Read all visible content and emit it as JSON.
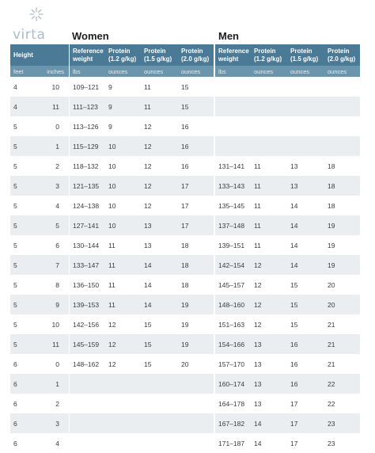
{
  "brand": {
    "name": "virta"
  },
  "sections": {
    "women": "Women",
    "men": "Men"
  },
  "header": {
    "height": "Height",
    "ref": "Reference weight",
    "p12": "Protein (1.2 g/kg)",
    "p15": "Protein (1.5 g/kg)",
    "p20": "Protein (2.0 g/kg)"
  },
  "units": {
    "feet": "feet",
    "inches": "inches",
    "lbs": "lbs",
    "ounces": "ounces"
  },
  "rows": [
    {
      "ft": "4",
      "in": "10",
      "w": [
        "109–121",
        "9",
        "11",
        "15"
      ],
      "m": [
        "",
        "",
        "",
        ""
      ]
    },
    {
      "ft": "4",
      "in": "11",
      "w": [
        "111–123",
        "9",
        "11",
        "15"
      ],
      "m": [
        "",
        "",
        "",
        ""
      ]
    },
    {
      "ft": "5",
      "in": "0",
      "w": [
        "113–126",
        "9",
        "12",
        "16"
      ],
      "m": [
        "",
        "",
        "",
        ""
      ]
    },
    {
      "ft": "5",
      "in": "1",
      "w": [
        "115–129",
        "10",
        "12",
        "16"
      ],
      "m": [
        "",
        "",
        "",
        ""
      ]
    },
    {
      "ft": "5",
      "in": "2",
      "w": [
        "118–132",
        "10",
        "12",
        "16"
      ],
      "m": [
        "131–141",
        "11",
        "13",
        "18"
      ]
    },
    {
      "ft": "5",
      "in": "3",
      "w": [
        "121–135",
        "10",
        "12",
        "17"
      ],
      "m": [
        "133–143",
        "11",
        "13",
        "18"
      ]
    },
    {
      "ft": "5",
      "in": "4",
      "w": [
        "124–138",
        "10",
        "12",
        "17"
      ],
      "m": [
        "135–145",
        "11",
        "14",
        "18"
      ]
    },
    {
      "ft": "5",
      "in": "5",
      "w": [
        "127–141",
        "10",
        "13",
        "17"
      ],
      "m": [
        "137–148",
        "11",
        "14",
        "19"
      ]
    },
    {
      "ft": "5",
      "in": "6",
      "w": [
        "130–144",
        "11",
        "13",
        "18"
      ],
      "m": [
        "139–151",
        "11",
        "14",
        "19"
      ]
    },
    {
      "ft": "5",
      "in": "7",
      "w": [
        "133–147",
        "11",
        "14",
        "18"
      ],
      "m": [
        "142–154",
        "12",
        "14",
        "19"
      ]
    },
    {
      "ft": "5",
      "in": "8",
      "w": [
        "136–150",
        "11",
        "14",
        "18"
      ],
      "m": [
        "145–157",
        "12",
        "15",
        "20"
      ]
    },
    {
      "ft": "5",
      "in": "9",
      "w": [
        "139–153",
        "11",
        "14",
        "19"
      ],
      "m": [
        "148–160",
        "12",
        "15",
        "20"
      ]
    },
    {
      "ft": "5",
      "in": "10",
      "w": [
        "142–156",
        "12",
        "15",
        "19"
      ],
      "m": [
        "151–163",
        "12",
        "15",
        "21"
      ]
    },
    {
      "ft": "5",
      "in": "11",
      "w": [
        "145–159",
        "12",
        "15",
        "19"
      ],
      "m": [
        "154–166",
        "13",
        "16",
        "21"
      ]
    },
    {
      "ft": "6",
      "in": "0",
      "w": [
        "148–162",
        "12",
        "15",
        "20"
      ],
      "m": [
        "157–170",
        "13",
        "16",
        "21"
      ]
    },
    {
      "ft": "6",
      "in": "1",
      "w": [
        "",
        "",
        "",
        ""
      ],
      "m": [
        "160–174",
        "13",
        "16",
        "22"
      ]
    },
    {
      "ft": "6",
      "in": "2",
      "w": [
        "",
        "",
        "",
        ""
      ],
      "m": [
        "164–178",
        "13",
        "17",
        "22"
      ]
    },
    {
      "ft": "6",
      "in": "3",
      "w": [
        "",
        "",
        "",
        ""
      ],
      "m": [
        "167–182",
        "14",
        "17",
        "23"
      ]
    },
    {
      "ft": "6",
      "in": "4",
      "w": [
        "",
        "",
        "",
        ""
      ],
      "m": [
        "171–187",
        "14",
        "17",
        "23"
      ]
    }
  ]
}
